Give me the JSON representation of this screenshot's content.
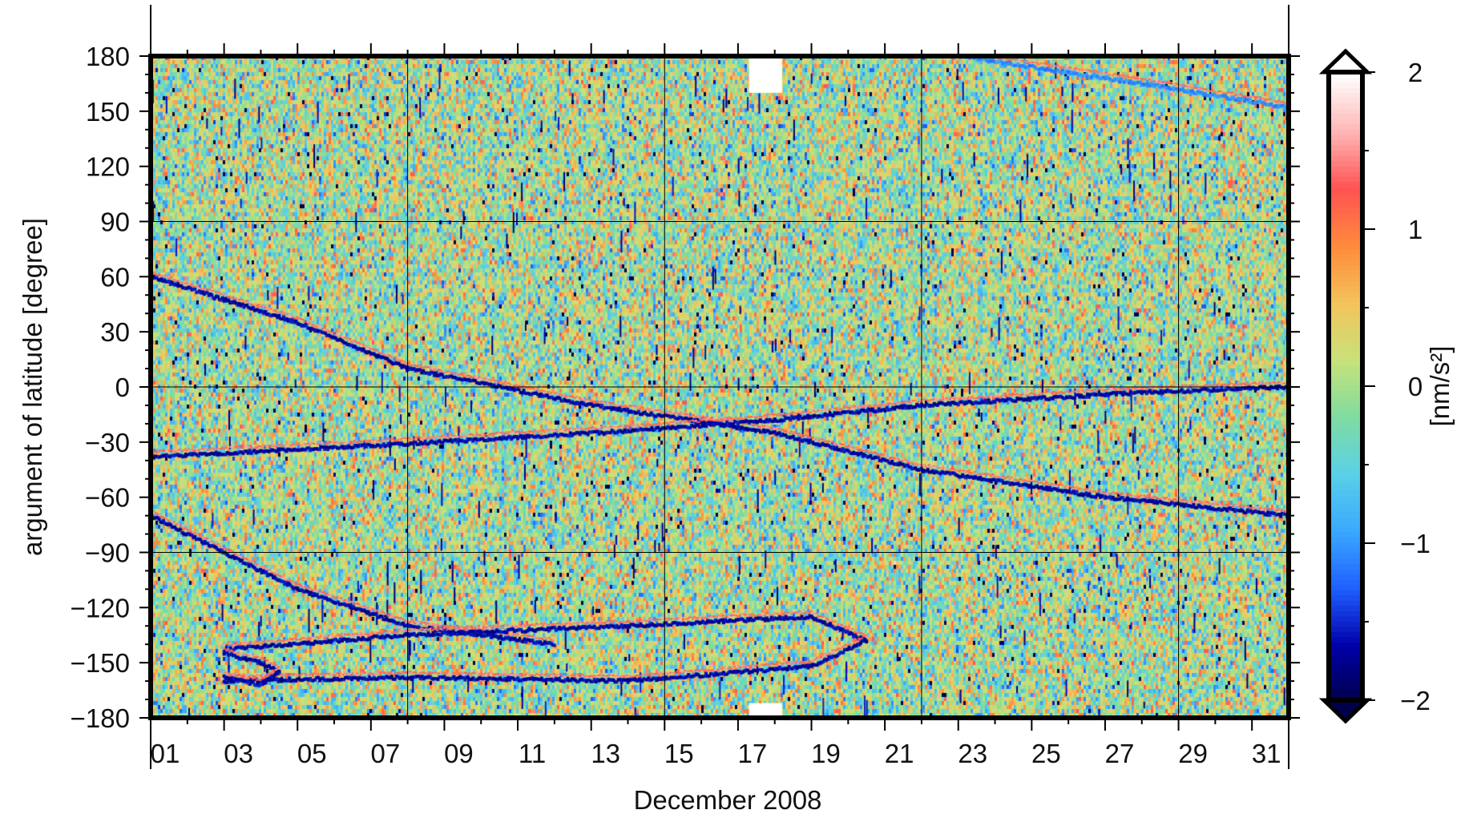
{
  "chart_data": {
    "type": "heatmap",
    "title": "",
    "xlabel": "December 2008",
    "ylabel": "argument of latitude [degree]",
    "x_range": [
      "2008-12-01",
      "2009-01-01"
    ],
    "xlim_days": [
      1,
      32
    ],
    "x_tick_labels": [
      "01",
      "03",
      "05",
      "07",
      "09",
      "11",
      "13",
      "15",
      "17",
      "19",
      "21",
      "23",
      "25",
      "27",
      "29",
      "31"
    ],
    "ylim": [
      -180,
      180
    ],
    "y_ticks": [
      180,
      150,
      120,
      90,
      60,
      30,
      0,
      -30,
      -60,
      -90,
      -120,
      -150,
      -180
    ],
    "y_tick_labels": [
      "180",
      "150",
      "120",
      "90",
      "60",
      "30",
      "0",
      "−30",
      "−60",
      "−90",
      "−120",
      "−150",
      "−180"
    ],
    "gridlines_x_days": [
      8,
      15,
      22,
      29
    ],
    "gridlines_y": [
      90,
      0,
      -90
    ],
    "grid": true,
    "colorbar": {
      "label": "[nm/s²]",
      "range": [
        -2,
        2
      ],
      "ticks": [
        2,
        1,
        0,
        -1,
        -2
      ],
      "tick_labels": [
        "2",
        "1",
        "0",
        "−1",
        "−2"
      ],
      "extend": "both",
      "colormap": [
        "#00004a",
        "#0000a8",
        "#1f5fff",
        "#3aa8ff",
        "#5ad0e8",
        "#7fdca0",
        "#c8e27a",
        "#f3c35a",
        "#ff8a3c",
        "#ff5252",
        "#ffb6b6",
        "#ffffff"
      ]
    },
    "features": [
      {
        "name": "descending band",
        "points": [
          [
            1,
            60
          ],
          [
            5,
            35
          ],
          [
            8,
            10
          ],
          [
            13,
            -10
          ],
          [
            18,
            -25
          ],
          [
            22,
            -45
          ],
          [
            27,
            -60
          ],
          [
            32,
            -70
          ]
        ],
        "value": -1.8
      },
      {
        "name": "ascending band",
        "points": [
          [
            1,
            -38
          ],
          [
            7,
            -32
          ],
          [
            14,
            -24
          ],
          [
            18,
            -18
          ],
          [
            22,
            -10
          ],
          [
            28,
            -3
          ],
          [
            32,
            0
          ]
        ],
        "value": -1.8
      },
      {
        "name": "lower descending band",
        "points": [
          [
            1,
            -70
          ],
          [
            5,
            -110
          ],
          [
            8,
            -130
          ],
          [
            12,
            -140
          ]
        ],
        "value": -1.8
      },
      {
        "name": "upper loop band",
        "points": [
          [
            3,
            -143
          ],
          [
            8,
            -135
          ],
          [
            14,
            -130
          ],
          [
            19,
            -125
          ],
          [
            20.5,
            -138
          ]
        ],
        "value": -1.8
      },
      {
        "name": "lower loop band",
        "points": [
          [
            3,
            -160
          ],
          [
            8,
            -158
          ],
          [
            14,
            -160
          ],
          [
            19,
            -152
          ],
          [
            20.5,
            -138
          ]
        ],
        "value": -1.8
      },
      {
        "name": "small loop",
        "points": [
          [
            3,
            -145
          ],
          [
            4,
            -150
          ],
          [
            4.5,
            -155
          ],
          [
            4,
            -162
          ],
          [
            3,
            -158
          ]
        ],
        "value": -1.8
      },
      {
        "name": "upper right band",
        "points": [
          [
            23,
            180
          ],
          [
            28,
            165
          ],
          [
            32,
            152
          ]
        ],
        "value": -1.2
      }
    ],
    "data_gaps": [
      {
        "x_days": [
          17.3,
          18.2
        ],
        "y": [
          160,
          180
        ]
      },
      {
        "x_days": [
          17.3,
          18.2
        ],
        "y": [
          -180,
          -172
        ]
      }
    ]
  }
}
